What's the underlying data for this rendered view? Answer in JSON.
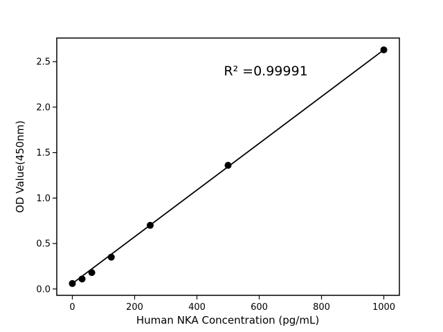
{
  "figure": {
    "background": "#ffffff",
    "foreground": "#000000"
  },
  "chart_data": {
    "type": "scatter",
    "x": [
      0,
      31.25,
      62.5,
      125,
      250,
      500,
      1000
    ],
    "y": [
      0.06,
      0.11,
      0.18,
      0.35,
      0.7,
      1.36,
      2.63
    ],
    "title": "",
    "xlabel": "Human NKA Concentration (pg/mL)",
    "ylabel": "OD Value(450nm)",
    "xticks": [
      0,
      200,
      400,
      600,
      800,
      1000
    ],
    "xtick_labels": [
      "0",
      "200",
      "400",
      "600",
      "800",
      "1000"
    ],
    "yticks": [
      0.0,
      0.5,
      1.0,
      1.5,
      2.0,
      2.5
    ],
    "ytick_labels": [
      "0.0",
      "0.5",
      "1.0",
      "1.5",
      "2.0",
      "2.5"
    ],
    "xlim": [
      -50,
      1050
    ],
    "ylim": [
      -0.07,
      2.76
    ],
    "grid": false,
    "legend": null,
    "fit_line": true,
    "annotation": {
      "text": "R² =0.99991"
    },
    "marker_color": "#000000",
    "line_color": "#000000",
    "frame_color": "#000000"
  }
}
